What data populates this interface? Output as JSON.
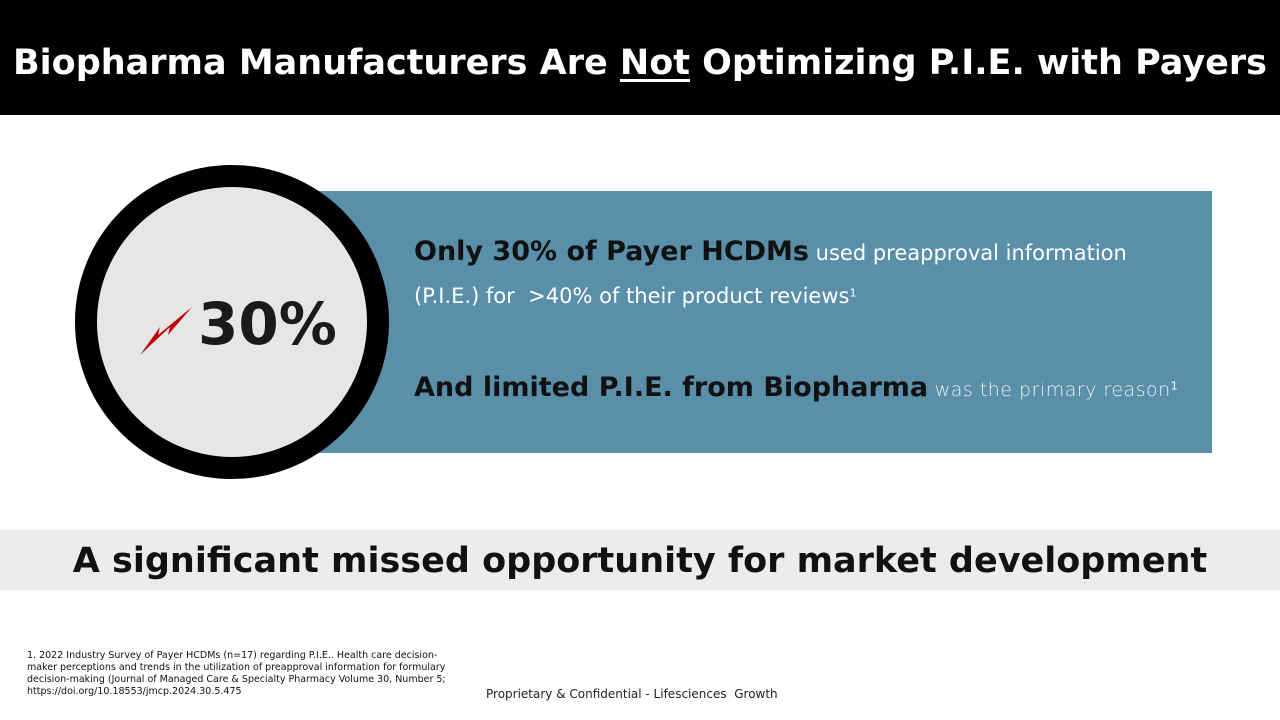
{
  "header": {
    "title_before": "Biopharma Manufacturers Are ",
    "title_emphasis": "Not",
    "title_after": " Optimizing P.I.E. with Payers"
  },
  "stat": {
    "value": "30%"
  },
  "callout": {
    "line1_bold": "Only 30% of Payer HCDMs",
    "line1_text": " used preapproval information",
    "line1_cont": "(P.I.E.) for  >40% of their product reviews",
    "line1_sup": "1",
    "line2_bold": "And limited P.I.E. from Biopharma",
    "line2_text": " was the primary reason",
    "line2_sup": "1"
  },
  "banner": {
    "text": "A significant missed opportunity for market development"
  },
  "footnote": {
    "text": "1. 2022 Industry Survey of Payer HCDMs (n=17) regarding P.I.E..  Health care decision-maker perceptions and trends in the utilization of preapproval information for formulary decision-making (Journal of Managed Care & Specialty Pharmacy Volume 30, Number 5; https://doi.org/10.18553/jmcp.2024.30.5.475"
  },
  "footer": {
    "text": "Proprietary & Confidential - Lifesciences  Growth"
  }
}
